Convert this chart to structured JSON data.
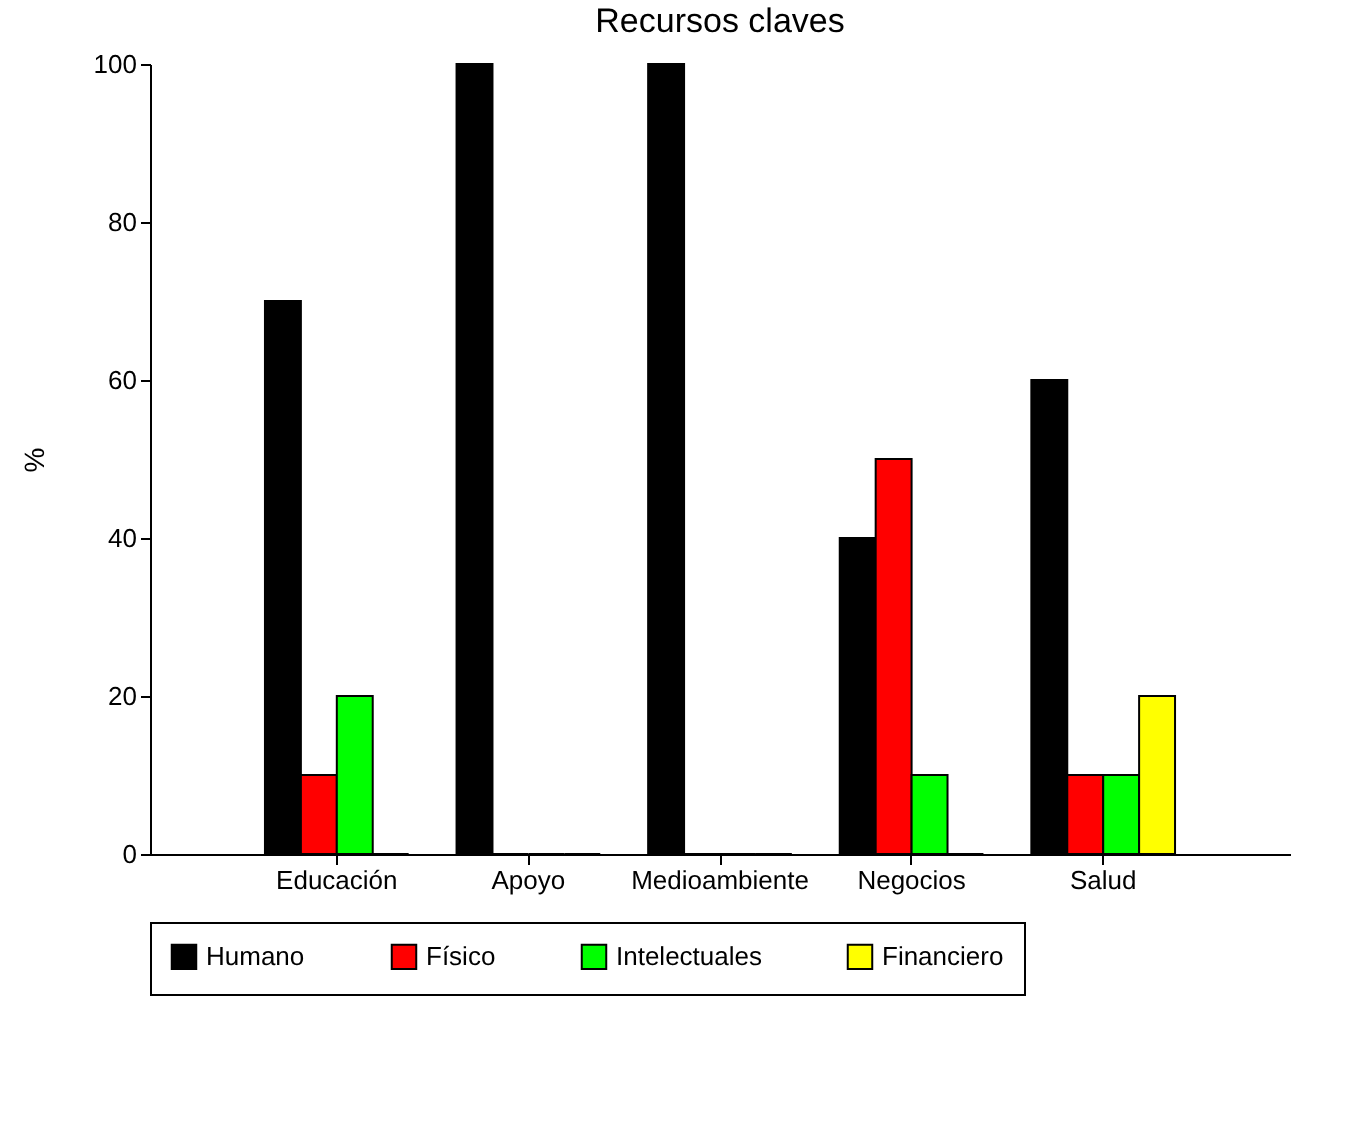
{
  "chart_data": {
    "type": "bar",
    "title": "Recursos claves",
    "ylabel": "%",
    "categories": [
      "Educación",
      "Apoyo",
      "Medioambiente",
      "Negocios",
      "Salud"
    ],
    "series": [
      {
        "name": "Humano",
        "color": "#000000",
        "values": [
          70,
          100,
          100,
          40,
          60
        ]
      },
      {
        "name": "Físico",
        "color": "#ff0000",
        "values": [
          10,
          0,
          0,
          50,
          10
        ]
      },
      {
        "name": "Intelectuales",
        "color": "#00ff00",
        "values": [
          20,
          0,
          0,
          10,
          10
        ]
      },
      {
        "name": "Financiero",
        "color": "#ffff00",
        "values": [
          0,
          0,
          0,
          0,
          20
        ]
      }
    ],
    "ylim": [
      0,
      100
    ],
    "yticks": [
      0,
      20,
      40,
      60,
      80,
      100
    ],
    "grid": false,
    "legend": "bottom"
  }
}
